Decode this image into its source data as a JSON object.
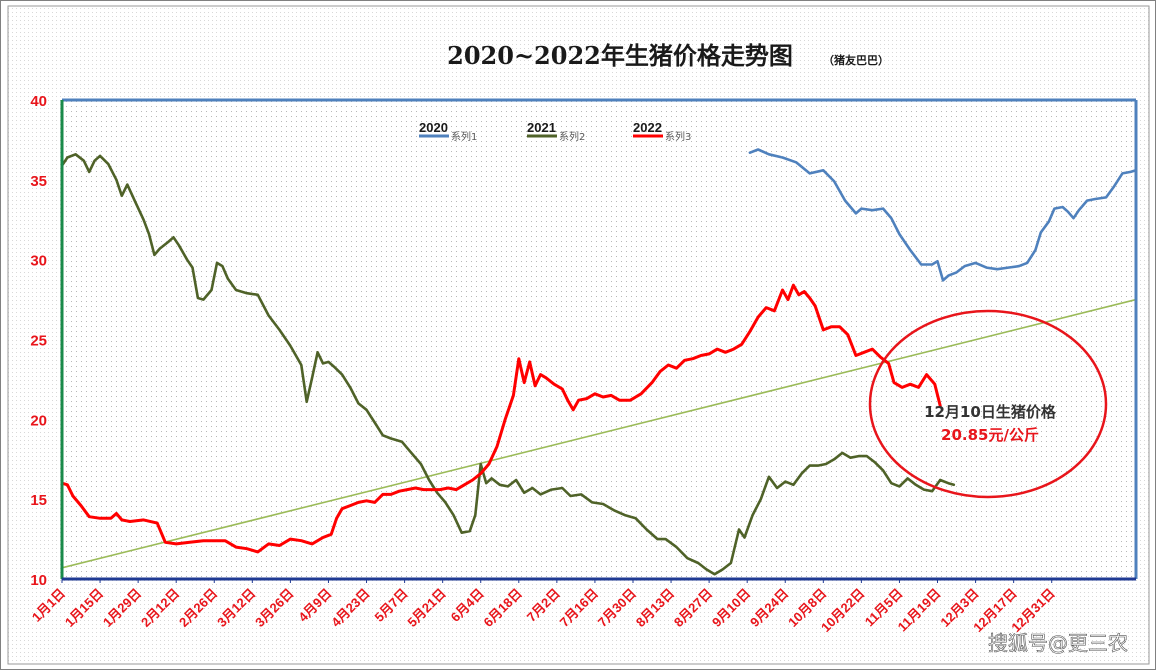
{
  "chart_data": {
    "type": "line",
    "title": "2020~2022年生猪价格走势图",
    "subtitle": "（猪友巴巴）",
    "ylim": [
      10,
      40
    ],
    "y_ticks": [
      "10",
      "15",
      "20",
      "25",
      "30",
      "35",
      "40"
    ],
    "x_ticks": [
      "1月1日",
      "1月15日",
      "1月29日",
      "2月12日",
      "2月26日",
      "3月12日",
      "3月26日",
      "4月9日",
      "4月23日",
      "5月7日",
      "5月21日",
      "6月4日",
      "6月18日",
      "7月2日",
      "7月16日",
      "7月30日",
      "8月13日",
      "8月27日",
      "9月10日",
      "9月24日",
      "10月8日",
      "10月22日",
      "11月5日",
      "11月19日",
      "12月3日",
      "12月17日",
      "12月31日"
    ],
    "legend_placement": "top-center",
    "grid": "dotted",
    "series": [
      {
        "year": "2020",
        "name": "系列1",
        "color": "#4f81bd",
        "points": [
          [
            253,
            36.7
          ],
          [
            256,
            36.9
          ],
          [
            260,
            36.6
          ],
          [
            265,
            36.4
          ],
          [
            270,
            36.1
          ],
          [
            275,
            35.4
          ],
          [
            280,
            35.6
          ],
          [
            284,
            34.9
          ],
          [
            288,
            33.7
          ],
          [
            292,
            32.9
          ],
          [
            294,
            33.2
          ],
          [
            298,
            33.1
          ],
          [
            302,
            33.2
          ],
          [
            305,
            32.6
          ],
          [
            308,
            31.6
          ],
          [
            312,
            30.6
          ],
          [
            316,
            29.7
          ],
          [
            320,
            29.7
          ],
          [
            322,
            29.9
          ],
          [
            324,
            28.7
          ],
          [
            326,
            29.0
          ],
          [
            329,
            29.2
          ],
          [
            332,
            29.6
          ],
          [
            336,
            29.8
          ],
          [
            340,
            29.5
          ],
          [
            344,
            29.4
          ],
          [
            348,
            29.5
          ],
          [
            352,
            29.6
          ],
          [
            355,
            29.8
          ],
          [
            358,
            30.6
          ],
          [
            360,
            31.7
          ],
          [
            363,
            32.4
          ],
          [
            365,
            33.2
          ],
          [
            368,
            33.3
          ],
          [
            370,
            33.0
          ],
          [
            372,
            32.6
          ],
          [
            374,
            33.1
          ],
          [
            377,
            33.7
          ],
          [
            380,
            33.8
          ],
          [
            384,
            33.9
          ],
          [
            387,
            34.6
          ],
          [
            390,
            35.4
          ],
          [
            393,
            35.5
          ],
          [
            395,
            35.6
          ]
        ]
      },
      {
        "year": "2021",
        "name": "系列2",
        "color": "#4f6228",
        "points": [
          [
            0,
            35.9
          ],
          [
            2,
            36.4
          ],
          [
            5,
            36.6
          ],
          [
            8,
            36.2
          ],
          [
            10,
            35.5
          ],
          [
            12,
            36.2
          ],
          [
            14,
            36.5
          ],
          [
            17,
            36.0
          ],
          [
            20,
            35.0
          ],
          [
            22,
            34.0
          ],
          [
            24,
            34.7
          ],
          [
            27,
            33.6
          ],
          [
            30,
            32.5
          ],
          [
            32,
            31.6
          ],
          [
            34,
            30.3
          ],
          [
            36,
            30.7
          ],
          [
            39,
            31.1
          ],
          [
            41,
            31.4
          ],
          [
            43,
            30.9
          ],
          [
            46,
            30.0
          ],
          [
            48,
            29.5
          ],
          [
            50,
            27.6
          ],
          [
            52,
            27.5
          ],
          [
            55,
            28.1
          ],
          [
            57,
            29.8
          ],
          [
            59,
            29.6
          ],
          [
            61,
            28.8
          ],
          [
            64,
            28.1
          ],
          [
            68,
            27.9
          ],
          [
            72,
            27.8
          ],
          [
            76,
            26.5
          ],
          [
            80,
            25.6
          ],
          [
            84,
            24.6
          ],
          [
            88,
            23.4
          ],
          [
            90,
            21.1
          ],
          [
            92,
            22.6
          ],
          [
            94,
            24.2
          ],
          [
            96,
            23.5
          ],
          [
            98,
            23.6
          ],
          [
            100,
            23.3
          ],
          [
            103,
            22.8
          ],
          [
            106,
            22.0
          ],
          [
            109,
            21.0
          ],
          [
            112,
            20.6
          ],
          [
            115,
            19.8
          ],
          [
            118,
            19.0
          ],
          [
            121,
            18.8
          ],
          [
            125,
            18.6
          ],
          [
            128,
            18.0
          ],
          [
            132,
            17.2
          ],
          [
            135,
            16.2
          ],
          [
            138,
            15.4
          ],
          [
            141,
            14.8
          ],
          [
            144,
            14.0
          ],
          [
            147,
            12.9
          ],
          [
            150,
            13.0
          ],
          [
            152,
            14.0
          ],
          [
            154,
            17.2
          ],
          [
            156,
            16.0
          ],
          [
            158,
            16.3
          ],
          [
            161,
            15.9
          ],
          [
            164,
            15.8
          ],
          [
            167,
            16.2
          ],
          [
            170,
            15.4
          ],
          [
            173,
            15.7
          ],
          [
            176,
            15.3
          ],
          [
            180,
            15.6
          ],
          [
            184,
            15.7
          ],
          [
            187,
            15.2
          ],
          [
            191,
            15.3
          ],
          [
            195,
            14.8
          ],
          [
            199,
            14.7
          ],
          [
            203,
            14.3
          ],
          [
            207,
            14.0
          ],
          [
            211,
            13.8
          ],
          [
            215,
            13.1
          ],
          [
            219,
            12.5
          ],
          [
            222,
            12.5
          ],
          [
            226,
            12.0
          ],
          [
            230,
            11.3
          ],
          [
            234,
            11.0
          ],
          [
            237,
            10.6
          ],
          [
            240,
            10.3
          ],
          [
            243,
            10.6
          ],
          [
            246,
            11.0
          ],
          [
            249,
            13.1
          ],
          [
            251,
            12.6
          ],
          [
            254,
            14.0
          ],
          [
            257,
            15.0
          ],
          [
            260,
            16.4
          ],
          [
            263,
            15.7
          ],
          [
            266,
            16.1
          ],
          [
            269,
            15.9
          ],
          [
            272,
            16.6
          ],
          [
            275,
            17.1
          ],
          [
            278,
            17.1
          ],
          [
            281,
            17.2
          ],
          [
            284,
            17.5
          ],
          [
            287,
            17.9
          ],
          [
            290,
            17.6
          ],
          [
            293,
            17.7
          ],
          [
            296,
            17.7
          ],
          [
            299,
            17.3
          ],
          [
            302,
            16.8
          ],
          [
            305,
            16.0
          ],
          [
            308,
            15.8
          ],
          [
            311,
            16.3
          ],
          [
            314,
            15.9
          ],
          [
            317,
            15.6
          ],
          [
            320,
            15.5
          ],
          [
            323,
            16.2
          ],
          [
            326,
            16.0
          ],
          [
            328,
            15.9
          ]
        ]
      },
      {
        "year": "2022",
        "name": "系列3",
        "color": "#ff0000",
        "points": [
          [
            0,
            16.0
          ],
          [
            2,
            15.9
          ],
          [
            4,
            15.2
          ],
          [
            7,
            14.6
          ],
          [
            10,
            13.9
          ],
          [
            14,
            13.8
          ],
          [
            18,
            13.8
          ],
          [
            20,
            14.1
          ],
          [
            22,
            13.7
          ],
          [
            25,
            13.6
          ],
          [
            30,
            13.7
          ],
          [
            35,
            13.5
          ],
          [
            38,
            12.3
          ],
          [
            42,
            12.2
          ],
          [
            47,
            12.3
          ],
          [
            52,
            12.4
          ],
          [
            56,
            12.4
          ],
          [
            60,
            12.4
          ],
          [
            64,
            12.0
          ],
          [
            68,
            11.9
          ],
          [
            72,
            11.7
          ],
          [
            76,
            12.2
          ],
          [
            80,
            12.1
          ],
          [
            84,
            12.5
          ],
          [
            88,
            12.4
          ],
          [
            92,
            12.2
          ],
          [
            96,
            12.6
          ],
          [
            99,
            12.8
          ],
          [
            101,
            13.8
          ],
          [
            103,
            14.4
          ],
          [
            106,
            14.6
          ],
          [
            109,
            14.8
          ],
          [
            112,
            14.9
          ],
          [
            115,
            14.8
          ],
          [
            118,
            15.3
          ],
          [
            121,
            15.3
          ],
          [
            124,
            15.5
          ],
          [
            127,
            15.6
          ],
          [
            130,
            15.7
          ],
          [
            133,
            15.6
          ],
          [
            136,
            15.6
          ],
          [
            139,
            15.6
          ],
          [
            142,
            15.7
          ],
          [
            145,
            15.6
          ],
          [
            148,
            15.9
          ],
          [
            151,
            16.2
          ],
          [
            154,
            16.6
          ],
          [
            157,
            17.2
          ],
          [
            160,
            18.3
          ],
          [
            163,
            20.0
          ],
          [
            166,
            21.5
          ],
          [
            168,
            23.8
          ],
          [
            170,
            22.3
          ],
          [
            172,
            23.6
          ],
          [
            174,
            22.1
          ],
          [
            176,
            22.8
          ],
          [
            178,
            22.6
          ],
          [
            181,
            22.2
          ],
          [
            184,
            21.9
          ],
          [
            186,
            21.2
          ],
          [
            188,
            20.6
          ],
          [
            190,
            21.2
          ],
          [
            193,
            21.3
          ],
          [
            196,
            21.6
          ],
          [
            199,
            21.4
          ],
          [
            202,
            21.5
          ],
          [
            205,
            21.2
          ],
          [
            209,
            21.2
          ],
          [
            213,
            21.6
          ],
          [
            217,
            22.3
          ],
          [
            220,
            23.0
          ],
          [
            223,
            23.4
          ],
          [
            226,
            23.2
          ],
          [
            229,
            23.7
          ],
          [
            232,
            23.8
          ],
          [
            235,
            24.0
          ],
          [
            238,
            24.1
          ],
          [
            241,
            24.4
          ],
          [
            244,
            24.2
          ],
          [
            247,
            24.4
          ],
          [
            250,
            24.7
          ],
          [
            253,
            25.5
          ],
          [
            256,
            26.4
          ],
          [
            259,
            27.0
          ],
          [
            262,
            26.8
          ],
          [
            265,
            28.1
          ],
          [
            267,
            27.5
          ],
          [
            269,
            28.4
          ],
          [
            271,
            27.8
          ],
          [
            273,
            28.0
          ],
          [
            275,
            27.6
          ],
          [
            277,
            27.1
          ],
          [
            280,
            25.6
          ],
          [
            283,
            25.8
          ],
          [
            286,
            25.8
          ],
          [
            289,
            25.3
          ],
          [
            292,
            24.0
          ],
          [
            295,
            24.2
          ],
          [
            298,
            24.4
          ],
          [
            301,
            23.9
          ],
          [
            304,
            23.5
          ],
          [
            306,
            22.3
          ],
          [
            309,
            22.0
          ],
          [
            312,
            22.2
          ],
          [
            315,
            22.0
          ],
          [
            318,
            22.8
          ],
          [
            321,
            22.2
          ],
          [
            323,
            20.85
          ]
        ]
      }
    ],
    "trendline": {
      "color": "#9bbb59",
      "from": [
        0,
        10.7
      ],
      "to": [
        395,
        27.5
      ]
    },
    "annotation": {
      "line1": "12月10日生猪价格",
      "line2": "20.85元/公斤"
    },
    "watermark": "搜狐号@更三农"
  }
}
